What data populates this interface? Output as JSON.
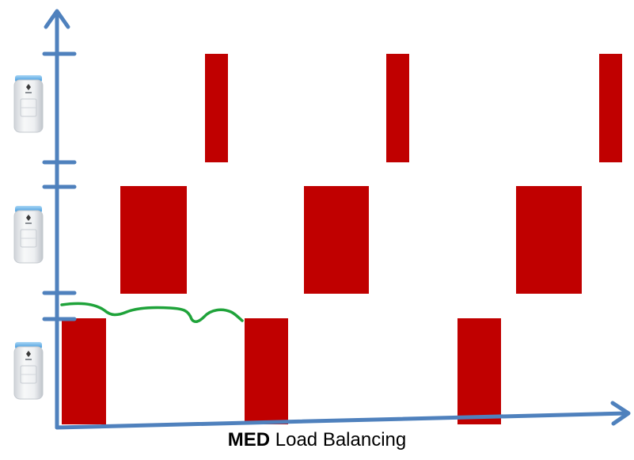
{
  "caption": {
    "bold": "MED",
    "rest": " Load Balancing"
  },
  "colors": {
    "axis": "#4f81bd",
    "bar": "#c00000",
    "line": "#1fa33a"
  },
  "rows": [
    {
      "name": "top-row",
      "icon": "thermostat-actuator-icon"
    },
    {
      "name": "middle-row",
      "icon": "thermostat-actuator-icon"
    },
    {
      "name": "bottom-row",
      "icon": "thermostat-actuator-icon"
    }
  ]
}
